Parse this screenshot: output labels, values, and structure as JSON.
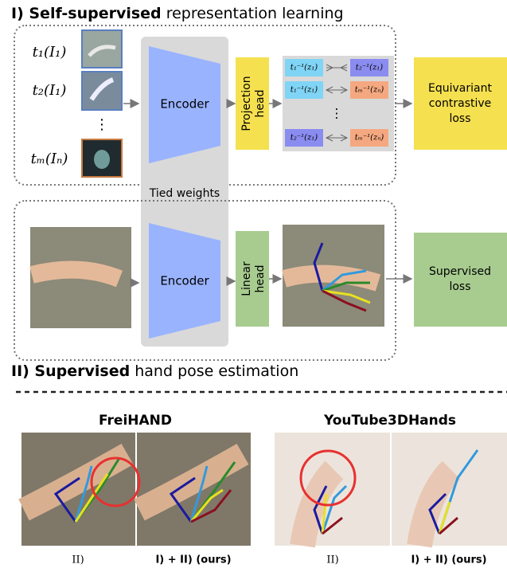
{
  "section_1": {
    "label_bold": "I) Self-supervised",
    "label_rest": "representation learning",
    "inputs": [
      "t₁(I₁)",
      "t₂(I₁)",
      "tₘ(Iₙ)"
    ],
    "inputs_ellipsis": "⋮",
    "encoder": "Encoder",
    "head": [
      "Projection",
      "head"
    ],
    "pairs": [
      [
        "t₁⁻¹(z₁)",
        "t₂⁻¹(z₁)"
      ],
      [
        "t₁⁻¹(z₁)",
        "tₘ⁻¹(zₙ)"
      ],
      [
        "t₂⁻¹(z₁)",
        "tₘ⁻¹(zₙ)"
      ]
    ],
    "pairs_ellipsis": "⋮",
    "loss": [
      "Equivariant",
      "contrastive",
      "loss"
    ]
  },
  "tied_weights": "Tied weights",
  "section_2": {
    "label_bold": "II) Supervised",
    "label_rest": "hand pose estimation",
    "encoder": "Encoder",
    "head": [
      "Linear",
      "head"
    ],
    "loss": [
      "Supervised",
      "loss"
    ]
  },
  "results": [
    {
      "dataset": "FreiHAND",
      "captions": [
        "II)",
        "I) + II) (ours)"
      ]
    },
    {
      "dataset": "YouTube3DHands",
      "captions": [
        "II)",
        "I) + II) (ours)"
      ]
    }
  ]
}
